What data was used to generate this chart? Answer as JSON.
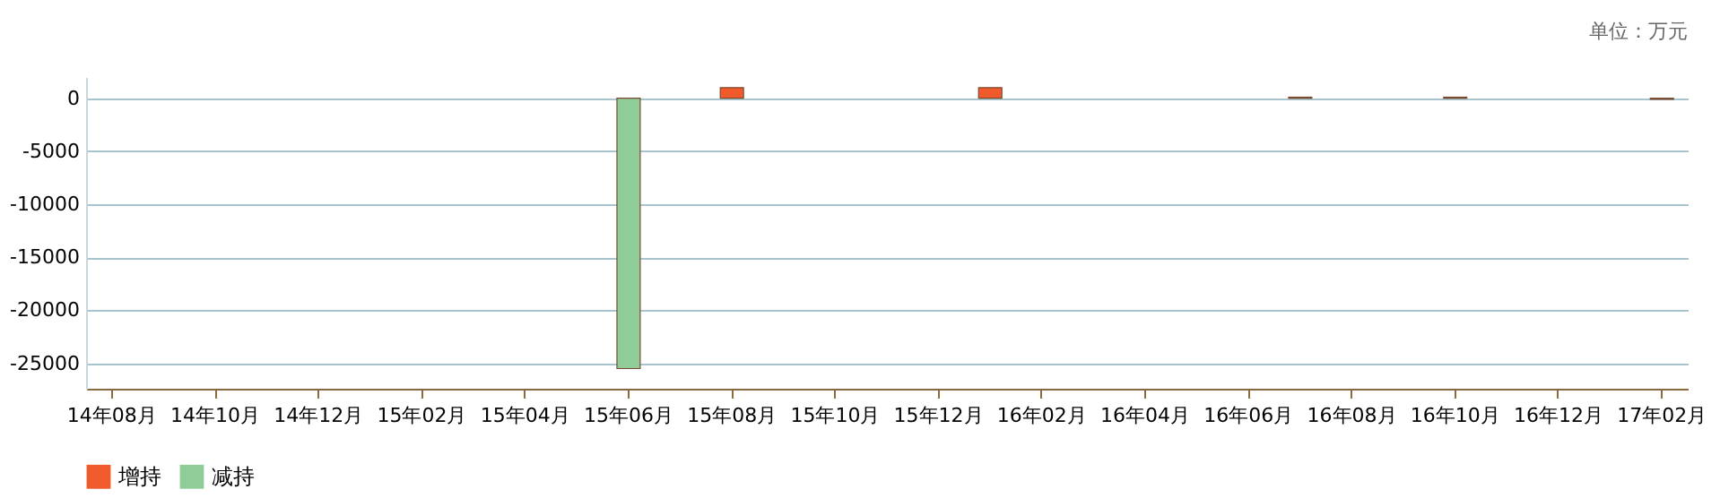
{
  "chart_data": {
    "type": "bar",
    "annotations": [
      "单位：万元"
    ],
    "categories": [
      "14年08月",
      null,
      "14年10月",
      null,
      "14年12月",
      null,
      "15年02月",
      null,
      "15年04月",
      null,
      "15年06月",
      null,
      "15年08月",
      null,
      "15年10月",
      null,
      "15年12月",
      null,
      "16年02月",
      null,
      "16年04月",
      null,
      "16年06月",
      null,
      "16年08月",
      null,
      "16年10月",
      null,
      "16年12月",
      null,
      "17年02月"
    ],
    "series": [
      {
        "name": "增持",
        "color": "#f15a2b",
        "values": [
          null,
          null,
          null,
          null,
          null,
          null,
          null,
          null,
          null,
          null,
          null,
          null,
          1000,
          null,
          null,
          null,
          null,
          1000,
          null,
          null,
          null,
          null,
          null,
          100,
          null,
          null,
          100,
          null,
          null,
          null,
          null
        ]
      },
      {
        "name": "减持",
        "color": "#8fcc98",
        "values": [
          null,
          null,
          null,
          null,
          null,
          null,
          null,
          null,
          null,
          null,
          -25500,
          null,
          null,
          null,
          null,
          null,
          null,
          null,
          null,
          null,
          null,
          null,
          null,
          null,
          null,
          null,
          null,
          null,
          null,
          null,
          -100
        ]
      }
    ],
    "ylim": [
      -27400,
      2000
    ],
    "yticks": [
      -25000,
      -20000,
      -15000,
      -10000,
      -5000,
      0
    ],
    "grid": "y",
    "legend": "bottom"
  }
}
